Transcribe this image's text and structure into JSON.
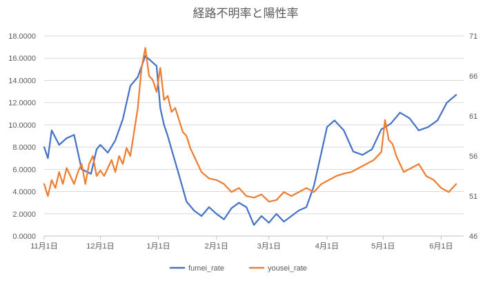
{
  "chart_data": {
    "type": "line",
    "title": "経路不明率と陽性率",
    "x_tick_labels": [
      "11月1日",
      "12月1日",
      "1月1日",
      "2月1日",
      "3月1日",
      "4月1日",
      "5月1日",
      "6月1日"
    ],
    "x_tick_days": [
      0,
      30,
      61,
      92,
      120,
      151,
      181,
      212
    ],
    "xlim_days": [
      0,
      224
    ],
    "y_left": {
      "ylim": [
        0,
        18
      ],
      "ticks": [
        "0.0000",
        "2.0000",
        "4.0000",
        "6.0000",
        "8.0000",
        "10.0000",
        "12.0000",
        "14.0000",
        "16.0000",
        "18.0000"
      ]
    },
    "y_right": {
      "ylim": [
        46,
        71
      ],
      "ticks": [
        "46",
        "51",
        "56",
        "61",
        "66",
        "71"
      ]
    },
    "grid": true,
    "legend_position": "bottom",
    "series": [
      {
        "name": "fumei_rate",
        "axis": "left",
        "color": "#4472C4",
        "x": [
          0,
          2,
          4,
          8,
          12,
          16,
          20,
          25,
          28,
          30,
          34,
          38,
          42,
          46,
          50,
          54,
          58,
          60,
          62,
          64,
          66,
          68,
          72,
          76,
          80,
          84,
          88,
          92,
          96,
          100,
          104,
          108,
          112,
          116,
          120,
          124,
          128,
          132,
          136,
          140,
          144,
          148,
          151,
          155,
          160,
          165,
          170,
          175,
          180,
          185,
          190,
          195,
          200,
          205,
          210,
          215,
          220
        ],
        "values": [
          8.0,
          7.0,
          9.5,
          8.2,
          8.8,
          9.1,
          6.0,
          5.6,
          7.8,
          8.2,
          7.5,
          8.6,
          10.5,
          13.5,
          14.3,
          16.2,
          15.6,
          15.3,
          11.5,
          10.0,
          9.0,
          7.8,
          5.5,
          3.1,
          2.3,
          1.8,
          2.6,
          2.0,
          1.5,
          2.5,
          3.0,
          2.6,
          1.0,
          1.8,
          1.2,
          2.0,
          1.3,
          1.8,
          2.3,
          2.6,
          4.5,
          7.5,
          9.8,
          10.4,
          9.5,
          7.6,
          7.3,
          7.8,
          9.6,
          10.1,
          11.1,
          10.6,
          9.5,
          9.8,
          10.4,
          12.0,
          12.7
        ]
      },
      {
        "name": "yousei_rate",
        "axis": "right",
        "color": "#ED7D31",
        "x": [
          0,
          2,
          4,
          6,
          8,
          10,
          12,
          14,
          16,
          18,
          20,
          22,
          24,
          26,
          28,
          30,
          32,
          34,
          36,
          38,
          40,
          42,
          44,
          46,
          48,
          50,
          52,
          54,
          56,
          58,
          60,
          62,
          64,
          66,
          68,
          70,
          72,
          74,
          76,
          78,
          80,
          84,
          88,
          92,
          96,
          100,
          104,
          108,
          112,
          116,
          120,
          124,
          128,
          132,
          136,
          140,
          144,
          148,
          152,
          156,
          160,
          164,
          168,
          172,
          176,
          180,
          182,
          184,
          186,
          188,
          192,
          196,
          200,
          204,
          208,
          212,
          216,
          220
        ],
        "values": [
          52.5,
          51.0,
          53.0,
          52.0,
          54.0,
          52.5,
          54.5,
          53.5,
          52.5,
          54.0,
          55.0,
          52.5,
          55.0,
          56.0,
          53.5,
          54.2,
          53.5,
          54.5,
          55.5,
          54.0,
          56.0,
          55.0,
          57.0,
          56.0,
          59.0,
          62.0,
          67.0,
          69.5,
          66.0,
          65.5,
          64.0,
          67.0,
          63.0,
          63.5,
          61.5,
          62.0,
          60.5,
          59.0,
          58.5,
          57.0,
          56.0,
          54.0,
          53.2,
          53.0,
          52.5,
          51.5,
          52.0,
          51.0,
          50.8,
          51.2,
          50.3,
          50.5,
          51.5,
          51.0,
          51.5,
          52.0,
          51.5,
          52.5,
          53.0,
          53.5,
          53.8,
          54.0,
          54.5,
          55.0,
          55.5,
          56.5,
          60.5,
          58.0,
          57.5,
          56.0,
          54.0,
          54.5,
          55.0,
          53.5,
          53.0,
          52.0,
          51.5,
          52.5
        ]
      }
    ]
  }
}
